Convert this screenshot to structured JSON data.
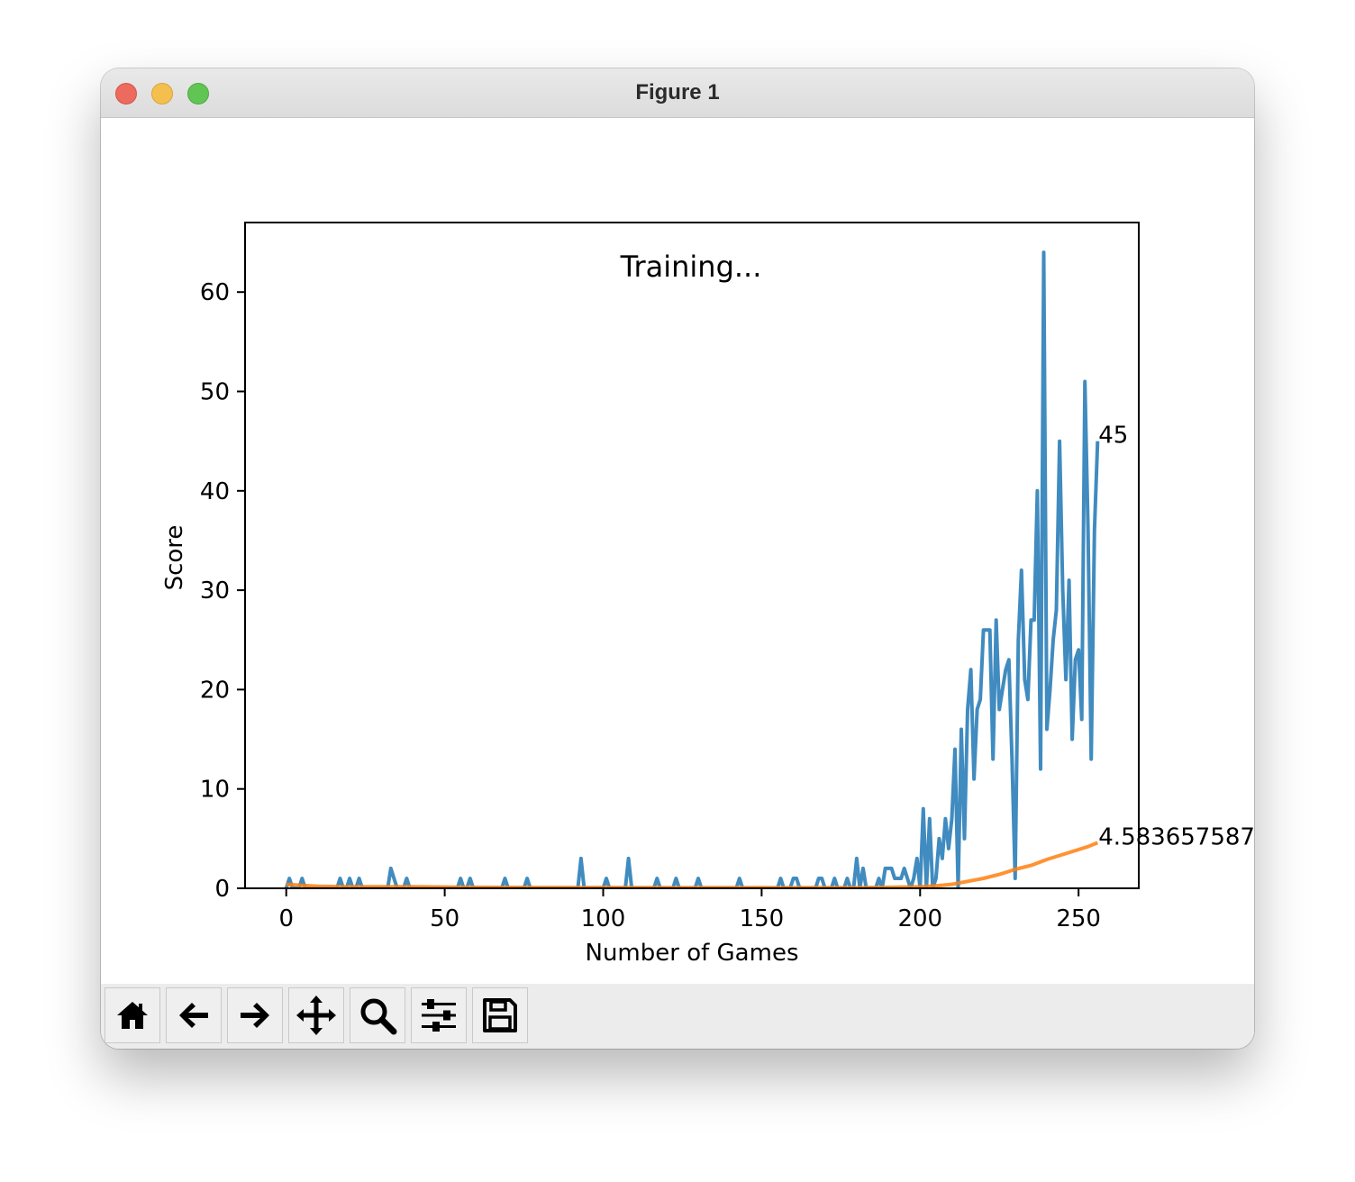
{
  "window": {
    "title": "Figure 1"
  },
  "toolbar": {
    "buttons": [
      {
        "name": "home-button",
        "icon": "home-icon"
      },
      {
        "name": "back-button",
        "icon": "arrow-left-icon"
      },
      {
        "name": "forward-button",
        "icon": "arrow-right-icon"
      },
      {
        "name": "pan-button",
        "icon": "move-icon"
      },
      {
        "name": "zoom-button",
        "icon": "search-icon"
      },
      {
        "name": "configure-subplots-button",
        "icon": "sliders-icon"
      },
      {
        "name": "save-button",
        "icon": "floppy-disk-icon"
      }
    ]
  },
  "chart_data": {
    "type": "line",
    "title": "Training...",
    "xlabel": "Number of Games",
    "ylabel": "Score",
    "xlim": [
      -13,
      269
    ],
    "ylim": [
      0,
      67
    ],
    "xticks": [
      0,
      50,
      100,
      150,
      200,
      250
    ],
    "yticks": [
      0,
      10,
      20,
      30,
      40,
      50,
      60
    ],
    "grid": false,
    "colors": [
      "#1f77b4",
      "#ff7f0e"
    ],
    "series": [
      {
        "points": [
          [
            0,
            0
          ],
          [
            1,
            1
          ],
          [
            2,
            0
          ],
          [
            4,
            0
          ],
          [
            5,
            1
          ],
          [
            6,
            0
          ],
          [
            16,
            0
          ],
          [
            17,
            1
          ],
          [
            18,
            0
          ],
          [
            19,
            0
          ],
          [
            20,
            1
          ],
          [
            21,
            0
          ],
          [
            22,
            0
          ],
          [
            23,
            1
          ],
          [
            24,
            0
          ],
          [
            32,
            0
          ],
          [
            33,
            2
          ],
          [
            34,
            1
          ],
          [
            35,
            0
          ],
          [
            37,
            0
          ],
          [
            38,
            1
          ],
          [
            39,
            0
          ],
          [
            54,
            0
          ],
          [
            55,
            1
          ],
          [
            56,
            0
          ],
          [
            57,
            0
          ],
          [
            58,
            1
          ],
          [
            59,
            0
          ],
          [
            68,
            0
          ],
          [
            69,
            1
          ],
          [
            70,
            0
          ],
          [
            75,
            0
          ],
          [
            76,
            1
          ],
          [
            77,
            0
          ],
          [
            92,
            0
          ],
          [
            93,
            3
          ],
          [
            94,
            0
          ],
          [
            100,
            0
          ],
          [
            101,
            1
          ],
          [
            102,
            0
          ],
          [
            107,
            0
          ],
          [
            108,
            3
          ],
          [
            109,
            0
          ],
          [
            116,
            0
          ],
          [
            117,
            1
          ],
          [
            118,
            0
          ],
          [
            122,
            0
          ],
          [
            123,
            1
          ],
          [
            124,
            0
          ],
          [
            129,
            0
          ],
          [
            130,
            1
          ],
          [
            131,
            0
          ],
          [
            142,
            0
          ],
          [
            143,
            1
          ],
          [
            144,
            0
          ],
          [
            155,
            0
          ],
          [
            156,
            1
          ],
          [
            157,
            0
          ],
          [
            159,
            0
          ],
          [
            160,
            1
          ],
          [
            161,
            1
          ],
          [
            162,
            0
          ],
          [
            167,
            0
          ],
          [
            168,
            1
          ],
          [
            169,
            1
          ],
          [
            170,
            0
          ],
          [
            172,
            0
          ],
          [
            173,
            1
          ],
          [
            174,
            0
          ],
          [
            176,
            0
          ],
          [
            177,
            1
          ],
          [
            178,
            0
          ],
          [
            179,
            0
          ],
          [
            180,
            3
          ],
          [
            181,
            0
          ],
          [
            182,
            2
          ],
          [
            183,
            0
          ],
          [
            186,
            0
          ],
          [
            187,
            1
          ],
          [
            188,
            0
          ],
          [
            189,
            2
          ],
          [
            190,
            2
          ],
          [
            191,
            2
          ],
          [
            192,
            1
          ],
          [
            193,
            1
          ],
          [
            194,
            1
          ],
          [
            195,
            2
          ],
          [
            196,
            1
          ],
          [
            197,
            0
          ],
          [
            198,
            1
          ],
          [
            199,
            3
          ],
          [
            200,
            0
          ],
          [
            201,
            8
          ],
          [
            202,
            0
          ],
          [
            203,
            7
          ],
          [
            204,
            0
          ],
          [
            205,
            1
          ],
          [
            206,
            5
          ],
          [
            207,
            3
          ],
          [
            208,
            7
          ],
          [
            209,
            4
          ],
          [
            210,
            7
          ],
          [
            211,
            14
          ],
          [
            212,
            0
          ],
          [
            213,
            16
          ],
          [
            214,
            5
          ],
          [
            215,
            18
          ],
          [
            216,
            22
          ],
          [
            217,
            11
          ],
          [
            218,
            18
          ],
          [
            219,
            19
          ],
          [
            220,
            26
          ],
          [
            221,
            26
          ],
          [
            222,
            26
          ],
          [
            223,
            13
          ],
          [
            224,
            27
          ],
          [
            225,
            18
          ],
          [
            226,
            20
          ],
          [
            227,
            22
          ],
          [
            228,
            23
          ],
          [
            229,
            13
          ],
          [
            230,
            1
          ],
          [
            231,
            25
          ],
          [
            232,
            32
          ],
          [
            233,
            21
          ],
          [
            234,
            19
          ],
          [
            235,
            27
          ],
          [
            236,
            27
          ],
          [
            237,
            40
          ],
          [
            238,
            12
          ],
          [
            239,
            64
          ],
          [
            240,
            16
          ],
          [
            241,
            20
          ],
          [
            242,
            25
          ],
          [
            243,
            28
          ],
          [
            244,
            45
          ],
          [
            245,
            30
          ],
          [
            246,
            21
          ],
          [
            247,
            31
          ],
          [
            248,
            15
          ],
          [
            249,
            23
          ],
          [
            250,
            24
          ],
          [
            251,
            17
          ],
          [
            252,
            51
          ],
          [
            253,
            36
          ],
          [
            254,
            13
          ],
          [
            255,
            36
          ],
          [
            256,
            45
          ]
        ]
      },
      {
        "points": [
          [
            0,
            0.4
          ],
          [
            10,
            0.2
          ],
          [
            20,
            0.15
          ],
          [
            40,
            0.15
          ],
          [
            60,
            0.1
          ],
          [
            80,
            0.08
          ],
          [
            100,
            0.08
          ],
          [
            120,
            0.07
          ],
          [
            140,
            0.06
          ],
          [
            160,
            0.06
          ],
          [
            180,
            0.06
          ],
          [
            190,
            0.1
          ],
          [
            200,
            0.15
          ],
          [
            205,
            0.25
          ],
          [
            210,
            0.4
          ],
          [
            215,
            0.7
          ],
          [
            220,
            1.0
          ],
          [
            225,
            1.4
          ],
          [
            230,
            1.9
          ],
          [
            235,
            2.3
          ],
          [
            240,
            2.9
          ],
          [
            245,
            3.4
          ],
          [
            250,
            3.9
          ],
          [
            253,
            4.2
          ],
          [
            256,
            4.58365758
          ]
        ]
      }
    ],
    "annotations": [
      {
        "x": 256,
        "y": 45,
        "text": "45"
      },
      {
        "x": 256,
        "y": 4.58365758,
        "text": "4.583657587"
      }
    ]
  }
}
